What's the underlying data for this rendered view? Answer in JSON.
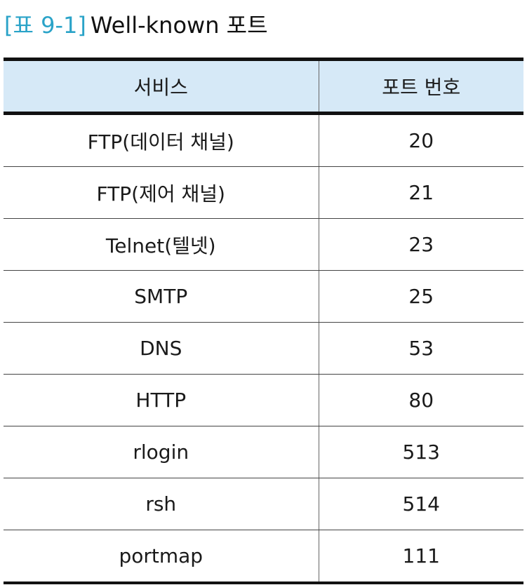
{
  "caption": {
    "label": "[표 9-1]",
    "title": "Well-known 포트"
  },
  "table": {
    "headers": [
      "서비스",
      "포트 번호"
    ],
    "rows": [
      [
        "FTP(데이터 채널)",
        "20"
      ],
      [
        "FTP(제어 채널)",
        "21"
      ],
      [
        "Telnet(텔넷)",
        "23"
      ],
      [
        "SMTP",
        "25"
      ],
      [
        "DNS",
        "53"
      ],
      [
        "HTTP",
        "80"
      ],
      [
        "rlogin",
        "513"
      ],
      [
        "rsh",
        "514"
      ],
      [
        "portmap",
        "111"
      ]
    ]
  },
  "colors": {
    "accent": "#2aa3c8",
    "header_bg": "#d6e9f7"
  }
}
